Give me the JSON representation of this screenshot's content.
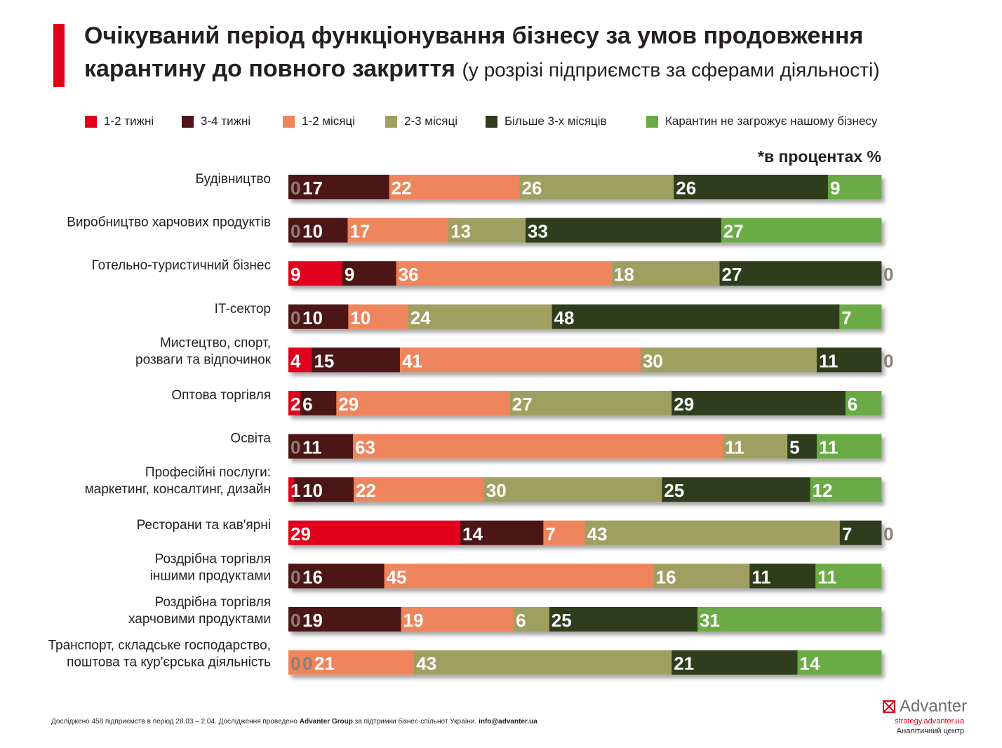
{
  "header": {
    "title": "Очікуваний період функціонування бізнесу за умов продовження карантину до повного закриття",
    "subtitle": "(у розрізі підприємств за сферами діяльності)"
  },
  "note": "*в процентах %",
  "colors": {
    "accent": "#e2001a",
    "label_dark": "#ffffff",
    "label_zero": "#8b7f7a"
  },
  "chart_data": {
    "type": "bar",
    "orientation": "horizontal",
    "stacked": true,
    "unit": "%",
    "categories": [
      "Будівництво",
      "Виробництво харчових продуктів",
      "Готельно-туристичний бізнес",
      "IT-сектор",
      "Мистецтво, спорт, розваги та відпочинок",
      "Оптова торгівля",
      "Освіта",
      "Професійні послуги: маркетинг, консалтинг, дизайн",
      "Ресторани та кав'ярні",
      "Роздрібна торгівля іншими продуктами",
      "Роздрібна торгівля харчовими продуктами",
      "Транспорт, складське господарство, поштова та кур'єрська діяльність"
    ],
    "category_lines": [
      [
        "Будівництво"
      ],
      [
        "Виробництво харчових продуктів"
      ],
      [
        "Готельно-туристичний бізнес"
      ],
      [
        "IT-сектор"
      ],
      [
        "Мистецтво, спорт,",
        "розваги та відпочинок"
      ],
      [
        "Оптова торгівля"
      ],
      [
        "Освіта"
      ],
      [
        "Професійні послуги:",
        "маркетинг, консалтинг, дизайн"
      ],
      [
        "Ресторани та кав'ярні"
      ],
      [
        "Роздрібна торгівля",
        "іншими продуктами"
      ],
      [
        "Роздрібна торгівля",
        "харчовими продуктами"
      ],
      [
        "Транспорт, складське господарство,",
        "поштова та кур'єрська діяльність"
      ]
    ],
    "series": [
      {
        "name": "1-2 тижні",
        "color": "#e2001a",
        "values": [
          0,
          0,
          9,
          0,
          4,
          2,
          0,
          1,
          29,
          0,
          0,
          0
        ]
      },
      {
        "name": "3-4 тижні",
        "color": "#4e1417",
        "values": [
          17,
          10,
          9,
          10,
          15,
          6,
          11,
          10,
          14,
          16,
          19,
          0
        ]
      },
      {
        "name": "1-2 місяці",
        "color": "#ef855b",
        "values": [
          22,
          17,
          36,
          10,
          41,
          29,
          63,
          22,
          7,
          45,
          19,
          21
        ]
      },
      {
        "name": "2-3 місяці",
        "color": "#a09f62",
        "values": [
          26,
          13,
          18,
          24,
          30,
          27,
          11,
          30,
          43,
          16,
          6,
          43
        ]
      },
      {
        "name": "Більше 3-х місяців",
        "color": "#2f3c1d",
        "values": [
          26,
          33,
          27,
          48,
          11,
          29,
          5,
          25,
          7,
          11,
          25,
          21
        ]
      },
      {
        "name": "Карантин не загрожує нашому бізнесу",
        "color": "#6bab45",
        "values": [
          9,
          27,
          0,
          7,
          0,
          6,
          11,
          12,
          0,
          11,
          31,
          14
        ]
      }
    ],
    "legend_position": "top"
  },
  "footer": {
    "text_before": "Досліджено 458 підприємств в період 28.03 – 2.04. Дослідження проведено",
    "org": "Advanter Group",
    "text_after": "за підтримки бізнес-спільнот України.",
    "email": "info@advanter.ua"
  },
  "brand": {
    "name": "Advanter",
    "url": "strategy.advanter.ua",
    "center": "Аналітичний центр",
    "logo_icon": "envelope-icon"
  }
}
